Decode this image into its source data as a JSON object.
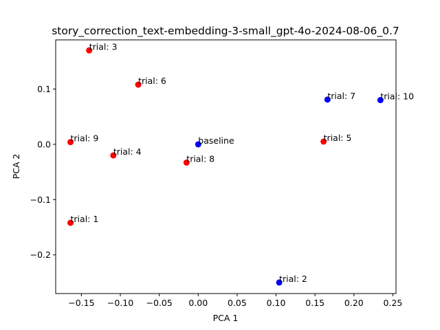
{
  "chart_data": {
    "type": "scatter",
    "title": "story_correction_text-embedding-3-small_gpt-4o-2024-08-06_0.7",
    "xlabel": "PCA 1",
    "ylabel": "PCA 2",
    "xlim": [
      -0.183,
      0.254
    ],
    "ylim": [
      -0.27,
      0.189
    ],
    "xticks": [
      -0.15,
      -0.1,
      -0.05,
      0.0,
      0.05,
      0.1,
      0.15,
      0.2,
      0.25
    ],
    "xtick_labels": [
      "−0.15",
      "−0.10",
      "−0.05",
      "0.00",
      "0.05",
      "0.10",
      "0.15",
      "0.20",
      "0.25"
    ],
    "yticks": [
      -0.2,
      -0.1,
      0.0,
      0.1
    ],
    "ytick_labels": [
      "−0.2",
      "−0.1",
      "0.0",
      "0.1"
    ],
    "grid": false,
    "colors": {
      "red": "#ff0000",
      "blue": "#0000ff"
    },
    "points": [
      {
        "label": "trial: 3",
        "x": -0.14,
        "y": 0.17,
        "color": "#ff0000"
      },
      {
        "label": "trial: 6",
        "x": -0.077,
        "y": 0.108,
        "color": "#ff0000"
      },
      {
        "label": "trial: 9",
        "x": -0.164,
        "y": 0.004,
        "color": "#ff0000"
      },
      {
        "label": "trial: 4",
        "x": -0.109,
        "y": -0.02,
        "color": "#ff0000"
      },
      {
        "label": "trial: 8",
        "x": -0.015,
        "y": -0.033,
        "color": "#ff0000"
      },
      {
        "label": "trial: 1",
        "x": -0.164,
        "y": -0.142,
        "color": "#ff0000"
      },
      {
        "label": "trial: 5",
        "x": 0.161,
        "y": 0.005,
        "color": "#ff0000"
      },
      {
        "label": "baseline",
        "x": 0.0,
        "y": 0.0,
        "color": "#0000ff"
      },
      {
        "label": "trial: 7",
        "x": 0.166,
        "y": 0.081,
        "color": "#0000ff"
      },
      {
        "label": "trial: 10",
        "x": 0.234,
        "y": 0.08,
        "color": "#0000ff"
      },
      {
        "label": "trial: 2",
        "x": 0.104,
        "y": -0.25,
        "color": "#0000ff"
      }
    ]
  }
}
